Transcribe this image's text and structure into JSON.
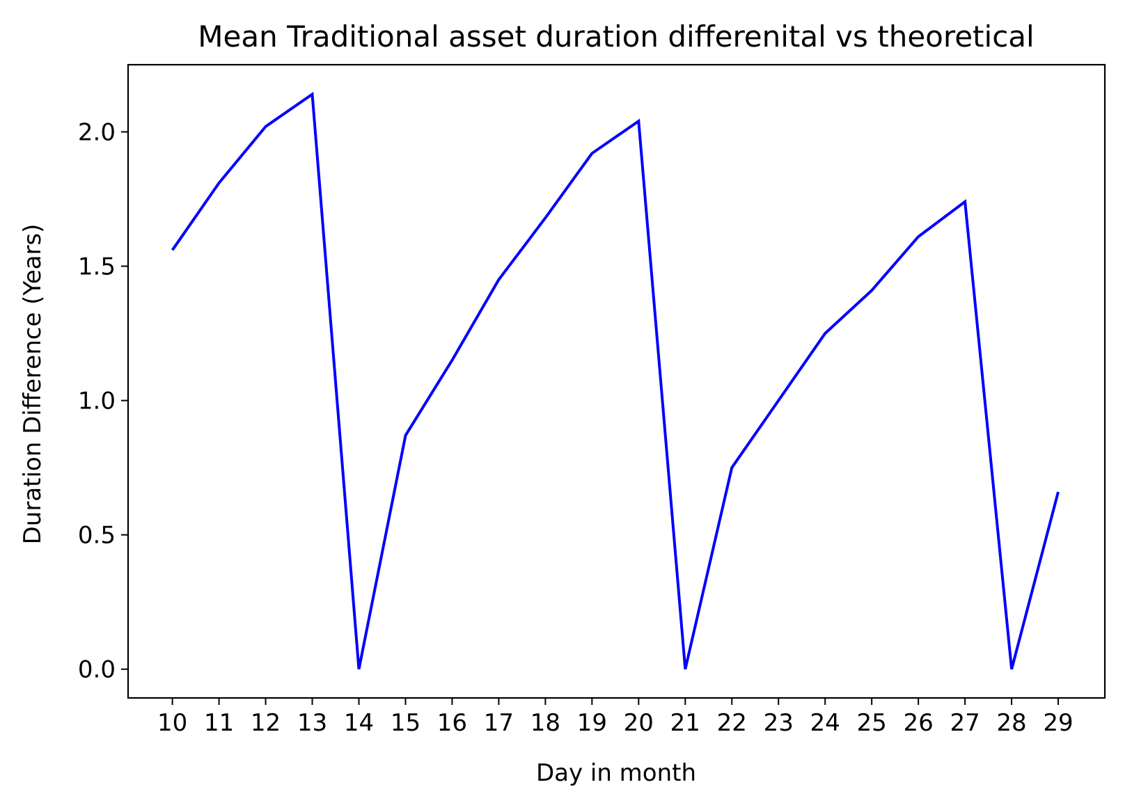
{
  "chart_data": {
    "type": "line",
    "title": "Mean Traditional asset duration differenital vs theoretical",
    "xlabel": "Day in month",
    "ylabel": "Duration Difference (Years)",
    "x": [
      10,
      11,
      12,
      13,
      14,
      15,
      16,
      17,
      18,
      19,
      20,
      21,
      22,
      23,
      24,
      25,
      26,
      27,
      28,
      29
    ],
    "series": [
      {
        "values": [
          1.56,
          1.81,
          2.02,
          2.14,
          0.0,
          0.87,
          1.15,
          1.45,
          1.68,
          1.92,
          2.04,
          0.0,
          0.75,
          1.0,
          1.25,
          1.41,
          1.61,
          1.74,
          0.0,
          0.66
        ],
        "color": "#0000ff"
      }
    ],
    "xticks": [
      "10",
      "11",
      "12",
      "13",
      "14",
      "15",
      "16",
      "17",
      "18",
      "19",
      "20",
      "21",
      "22",
      "23",
      "24",
      "25",
      "26",
      "27",
      "28",
      "29"
    ],
    "yticks": [
      "0.0",
      "0.5",
      "1.0",
      "1.5",
      "2.0"
    ],
    "xlim": [
      9.05,
      30.0
    ],
    "ylim": [
      -0.107,
      2.25
    ],
    "grid": false,
    "legend": "none"
  }
}
